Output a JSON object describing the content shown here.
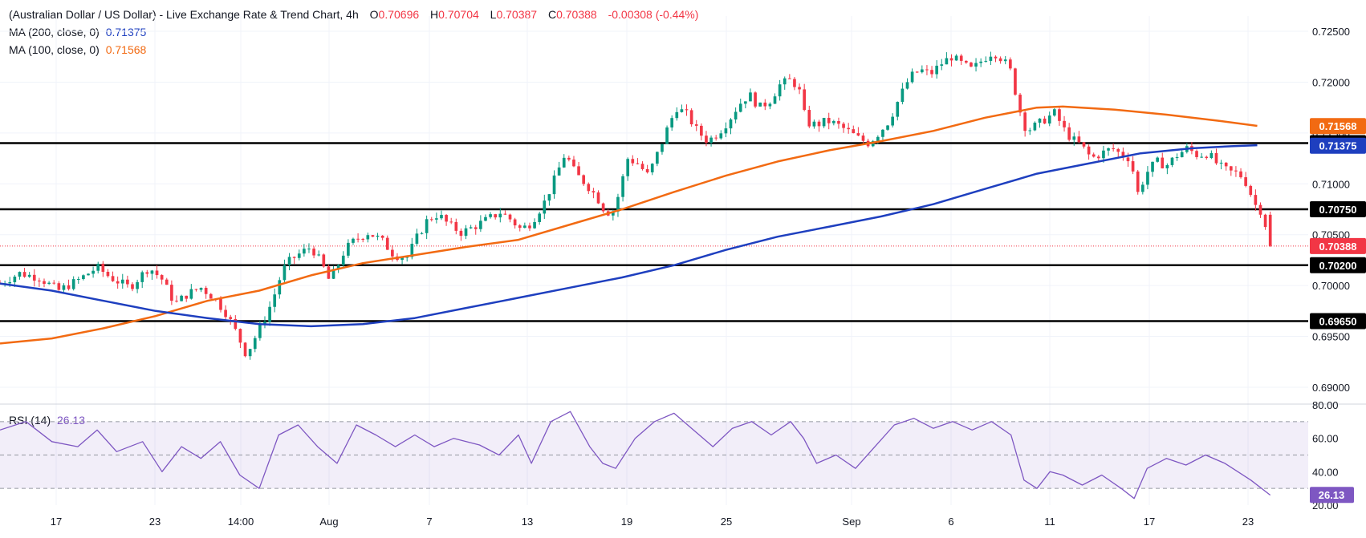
{
  "header": {
    "title": "(Australian Dollar / US Dollar) - Live Exchange Rate & Trend Chart, 4h",
    "open_label": "O",
    "open": "0.70696",
    "high_label": "H",
    "high": "0.70704",
    "low_label": "L",
    "low": "0.70387",
    "close_label": "C",
    "close": "0.70388",
    "change": "-0.00308 (-0.44%)"
  },
  "indicators": {
    "ma200": {
      "label": "MA (200, close, 0)",
      "value": "0.71375",
      "color": "#1e3fbf"
    },
    "ma100": {
      "label": "MA (100, close, 0)",
      "value": "0.71568",
      "color": "#f26a12"
    },
    "rsi": {
      "label": "RSI (14)",
      "value": "26.13",
      "color": "#7e57c2"
    }
  },
  "colors": {
    "up": "#089981",
    "down": "#f23645",
    "level": "#000000",
    "grid": "#f0f3fa",
    "price_line": "#f23645"
  },
  "chart_data": {
    "type": "candlestick",
    "x_tick_labels": [
      "17",
      "23",
      "14:00",
      "Aug",
      "7",
      "13",
      "19",
      "25",
      "Sep",
      "6",
      "11",
      "17",
      "23"
    ],
    "y_tick_labels": [
      "0.72500",
      "0.72000",
      "0.71500",
      "0.71000",
      "0.70500",
      "0.70000",
      "0.69500",
      "0.69000"
    ],
    "ylim": [
      0.6885,
      0.7265
    ],
    "horizontal_levels": [
      {
        "value": 0.714,
        "label": "0.71400"
      },
      {
        "value": 0.7075,
        "label": "0.70750"
      },
      {
        "value": 0.702,
        "label": "0.70200"
      },
      {
        "value": 0.6965,
        "label": "0.69650"
      }
    ],
    "price_tags": [
      {
        "value": 0.71568,
        "label": "0.71568",
        "color": "#f26a12"
      },
      {
        "value": 0.71375,
        "label": "0.71375",
        "color": "#1e3fbf"
      },
      {
        "value": 0.70388,
        "label": "0.70388",
        "color": "#f23645"
      }
    ],
    "close_path": [
      [
        0,
        0.7002
      ],
      [
        0.015,
        0.7012
      ],
      [
        0.03,
        0.7008
      ],
      [
        0.045,
        0.6995
      ],
      [
        0.06,
        0.7005
      ],
      [
        0.075,
        0.7018
      ],
      [
        0.085,
        0.7008
      ],
      [
        0.1,
        0.6998
      ],
      [
        0.115,
        0.7018
      ],
      [
        0.125,
        0.7006
      ],
      [
        0.135,
        0.6982
      ],
      [
        0.145,
        0.6992
      ],
      [
        0.155,
        0.6998
      ],
      [
        0.165,
        0.6988
      ],
      [
        0.175,
        0.6972
      ],
      [
        0.183,
        0.6952
      ],
      [
        0.19,
        0.6932
      ],
      [
        0.198,
        0.6952
      ],
      [
        0.206,
        0.6972
      ],
      [
        0.212,
        0.6992
      ],
      [
        0.218,
        0.7015
      ],
      [
        0.224,
        0.7025
      ],
      [
        0.232,
        0.7032
      ],
      [
        0.24,
        0.7038
      ],
      [
        0.248,
        0.7022
      ],
      [
        0.254,
        0.7005
      ],
      [
        0.26,
        0.7018
      ],
      [
        0.266,
        0.7035
      ],
      [
        0.274,
        0.7045
      ],
      [
        0.284,
        0.7052
      ],
      [
        0.294,
        0.7045
      ],
      [
        0.304,
        0.703
      ],
      [
        0.314,
        0.7028
      ],
      [
        0.322,
        0.7048
      ],
      [
        0.33,
        0.7065
      ],
      [
        0.338,
        0.707
      ],
      [
        0.346,
        0.706
      ],
      [
        0.356,
        0.7052
      ],
      [
        0.366,
        0.7058
      ],
      [
        0.376,
        0.7065
      ],
      [
        0.386,
        0.7072
      ],
      [
        0.394,
        0.7065
      ],
      [
        0.402,
        0.7055
      ],
      [
        0.41,
        0.7062
      ],
      [
        0.42,
        0.7082
      ],
      [
        0.428,
        0.7105
      ],
      [
        0.436,
        0.713
      ],
      [
        0.444,
        0.711
      ],
      [
        0.452,
        0.71
      ],
      [
        0.46,
        0.7088
      ],
      [
        0.466,
        0.7075
      ],
      [
        0.472,
        0.707
      ],
      [
        0.478,
        0.7092
      ],
      [
        0.484,
        0.7125
      ],
      [
        0.492,
        0.712
      ],
      [
        0.5,
        0.7108
      ],
      [
        0.508,
        0.7132
      ],
      [
        0.516,
        0.7158
      ],
      [
        0.522,
        0.7175
      ],
      [
        0.53,
        0.7168
      ],
      [
        0.538,
        0.7152
      ],
      [
        0.546,
        0.7142
      ],
      [
        0.554,
        0.715
      ],
      [
        0.562,
        0.7162
      ],
      [
        0.57,
        0.7178
      ],
      [
        0.578,
        0.7188
      ],
      [
        0.586,
        0.7175
      ],
      [
        0.594,
        0.7182
      ],
      [
        0.602,
        0.7198
      ],
      [
        0.61,
        0.7202
      ],
      [
        0.616,
        0.7195
      ],
      [
        0.622,
        0.716
      ],
      [
        0.63,
        0.7158
      ],
      [
        0.638,
        0.7162
      ],
      [
        0.646,
        0.7158
      ],
      [
        0.654,
        0.7152
      ],
      [
        0.662,
        0.7145
      ],
      [
        0.67,
        0.714
      ],
      [
        0.678,
        0.715
      ],
      [
        0.686,
        0.7162
      ],
      [
        0.694,
        0.7185
      ],
      [
        0.702,
        0.7205
      ],
      [
        0.71,
        0.7212
      ],
      [
        0.718,
        0.7208
      ],
      [
        0.726,
        0.7218
      ],
      [
        0.734,
        0.7225
      ],
      [
        0.742,
        0.7218
      ],
      [
        0.75,
        0.7212
      ],
      [
        0.758,
        0.7222
      ],
      [
        0.766,
        0.723
      ],
      [
        0.774,
        0.7222
      ],
      [
        0.78,
        0.721
      ],
      [
        0.786,
        0.7175
      ],
      [
        0.792,
        0.7152
      ],
      [
        0.8,
        0.7158
      ],
      [
        0.808,
        0.7165
      ],
      [
        0.814,
        0.717
      ],
      [
        0.82,
        0.7155
      ],
      [
        0.826,
        0.7145
      ],
      [
        0.834,
        0.7138
      ],
      [
        0.842,
        0.7125
      ],
      [
        0.85,
        0.713
      ],
      [
        0.858,
        0.7135
      ],
      [
        0.866,
        0.7128
      ],
      [
        0.872,
        0.7125
      ],
      [
        0.878,
        0.709
      ],
      [
        0.884,
        0.711
      ],
      [
        0.892,
        0.7122
      ],
      [
        0.9,
        0.7118
      ],
      [
        0.908,
        0.7128
      ],
      [
        0.916,
        0.7135
      ],
      [
        0.924,
        0.7128
      ],
      [
        0.932,
        0.713
      ],
      [
        0.94,
        0.7118
      ],
      [
        0.948,
        0.7112
      ],
      [
        0.956,
        0.711
      ],
      [
        0.962,
        0.71
      ],
      [
        0.968,
        0.708
      ],
      [
        0.974,
        0.7072
      ],
      [
        0.98,
        0.7039
      ]
    ],
    "ma100": [
      [
        0,
        0.6943
      ],
      [
        0.04,
        0.6948
      ],
      [
        0.08,
        0.6958
      ],
      [
        0.12,
        0.697
      ],
      [
        0.16,
        0.6985
      ],
      [
        0.2,
        0.6995
      ],
      [
        0.24,
        0.701
      ],
      [
        0.28,
        0.7022
      ],
      [
        0.32,
        0.703
      ],
      [
        0.36,
        0.7038
      ],
      [
        0.4,
        0.7045
      ],
      [
        0.44,
        0.706
      ],
      [
        0.48,
        0.7075
      ],
      [
        0.52,
        0.7092
      ],
      [
        0.56,
        0.7108
      ],
      [
        0.6,
        0.7122
      ],
      [
        0.64,
        0.7133
      ],
      [
        0.68,
        0.7142
      ],
      [
        0.72,
        0.7152
      ],
      [
        0.76,
        0.7165
      ],
      [
        0.8,
        0.7175
      ],
      [
        0.82,
        0.7176
      ],
      [
        0.86,
        0.7173
      ],
      [
        0.9,
        0.7168
      ],
      [
        0.94,
        0.7162
      ],
      [
        0.97,
        0.7157
      ]
    ],
    "ma200": [
      [
        0,
        0.7002
      ],
      [
        0.04,
        0.6995
      ],
      [
        0.08,
        0.6985
      ],
      [
        0.12,
        0.6975
      ],
      [
        0.16,
        0.6968
      ],
      [
        0.2,
        0.6962
      ],
      [
        0.24,
        0.696
      ],
      [
        0.28,
        0.6962
      ],
      [
        0.32,
        0.6968
      ],
      [
        0.36,
        0.6978
      ],
      [
        0.4,
        0.6988
      ],
      [
        0.44,
        0.6998
      ],
      [
        0.48,
        0.7008
      ],
      [
        0.52,
        0.702
      ],
      [
        0.56,
        0.7035
      ],
      [
        0.6,
        0.7048
      ],
      [
        0.64,
        0.7058
      ],
      [
        0.68,
        0.7068
      ],
      [
        0.72,
        0.708
      ],
      [
        0.76,
        0.7095
      ],
      [
        0.8,
        0.711
      ],
      [
        0.84,
        0.712
      ],
      [
        0.88,
        0.713
      ],
      [
        0.92,
        0.7135
      ],
      [
        0.95,
        0.7137
      ],
      [
        0.97,
        0.7138
      ]
    ],
    "rsi": {
      "label": "RSI (14)",
      "value": 26.13,
      "ylim": [
        20,
        80
      ],
      "y_tick_labels": [
        "80.00",
        "60.00",
        "40.00",
        "20.00"
      ],
      "bands": [
        30,
        50,
        70
      ],
      "path": [
        [
          0,
          65
        ],
        [
          0.02,
          70
        ],
        [
          0.04,
          58
        ],
        [
          0.06,
          55
        ],
        [
          0.075,
          65
        ],
        [
          0.09,
          52
        ],
        [
          0.11,
          58
        ],
        [
          0.125,
          40
        ],
        [
          0.14,
          55
        ],
        [
          0.155,
          48
        ],
        [
          0.17,
          58
        ],
        [
          0.185,
          38
        ],
        [
          0.2,
          30
        ],
        [
          0.215,
          62
        ],
        [
          0.23,
          68
        ],
        [
          0.245,
          55
        ],
        [
          0.26,
          45
        ],
        [
          0.275,
          68
        ],
        [
          0.29,
          62
        ],
        [
          0.305,
          55
        ],
        [
          0.32,
          62
        ],
        [
          0.335,
          55
        ],
        [
          0.35,
          60
        ],
        [
          0.37,
          56
        ],
        [
          0.385,
          50
        ],
        [
          0.4,
          62
        ],
        [
          0.41,
          45
        ],
        [
          0.425,
          70
        ],
        [
          0.44,
          76
        ],
        [
          0.455,
          55
        ],
        [
          0.465,
          45
        ],
        [
          0.475,
          42
        ],
        [
          0.49,
          60
        ],
        [
          0.505,
          70
        ],
        [
          0.52,
          75
        ],
        [
          0.535,
          65
        ],
        [
          0.55,
          55
        ],
        [
          0.565,
          66
        ],
        [
          0.58,
          70
        ],
        [
          0.595,
          62
        ],
        [
          0.61,
          70
        ],
        [
          0.62,
          60
        ],
        [
          0.63,
          45
        ],
        [
          0.645,
          50
        ],
        [
          0.66,
          42
        ],
        [
          0.675,
          55
        ],
        [
          0.69,
          68
        ],
        [
          0.705,
          72
        ],
        [
          0.72,
          66
        ],
        [
          0.735,
          70
        ],
        [
          0.75,
          65
        ],
        [
          0.765,
          70
        ],
        [
          0.78,
          62
        ],
        [
          0.79,
          35
        ],
        [
          0.8,
          30
        ],
        [
          0.81,
          40
        ],
        [
          0.82,
          38
        ],
        [
          0.835,
          32
        ],
        [
          0.85,
          38
        ],
        [
          0.865,
          30
        ],
        [
          0.875,
          24
        ],
        [
          0.885,
          42
        ],
        [
          0.9,
          48
        ],
        [
          0.915,
          44
        ],
        [
          0.93,
          50
        ],
        [
          0.945,
          45
        ],
        [
          0.955,
          40
        ],
        [
          0.965,
          35
        ],
        [
          0.98,
          26
        ]
      ]
    }
  }
}
